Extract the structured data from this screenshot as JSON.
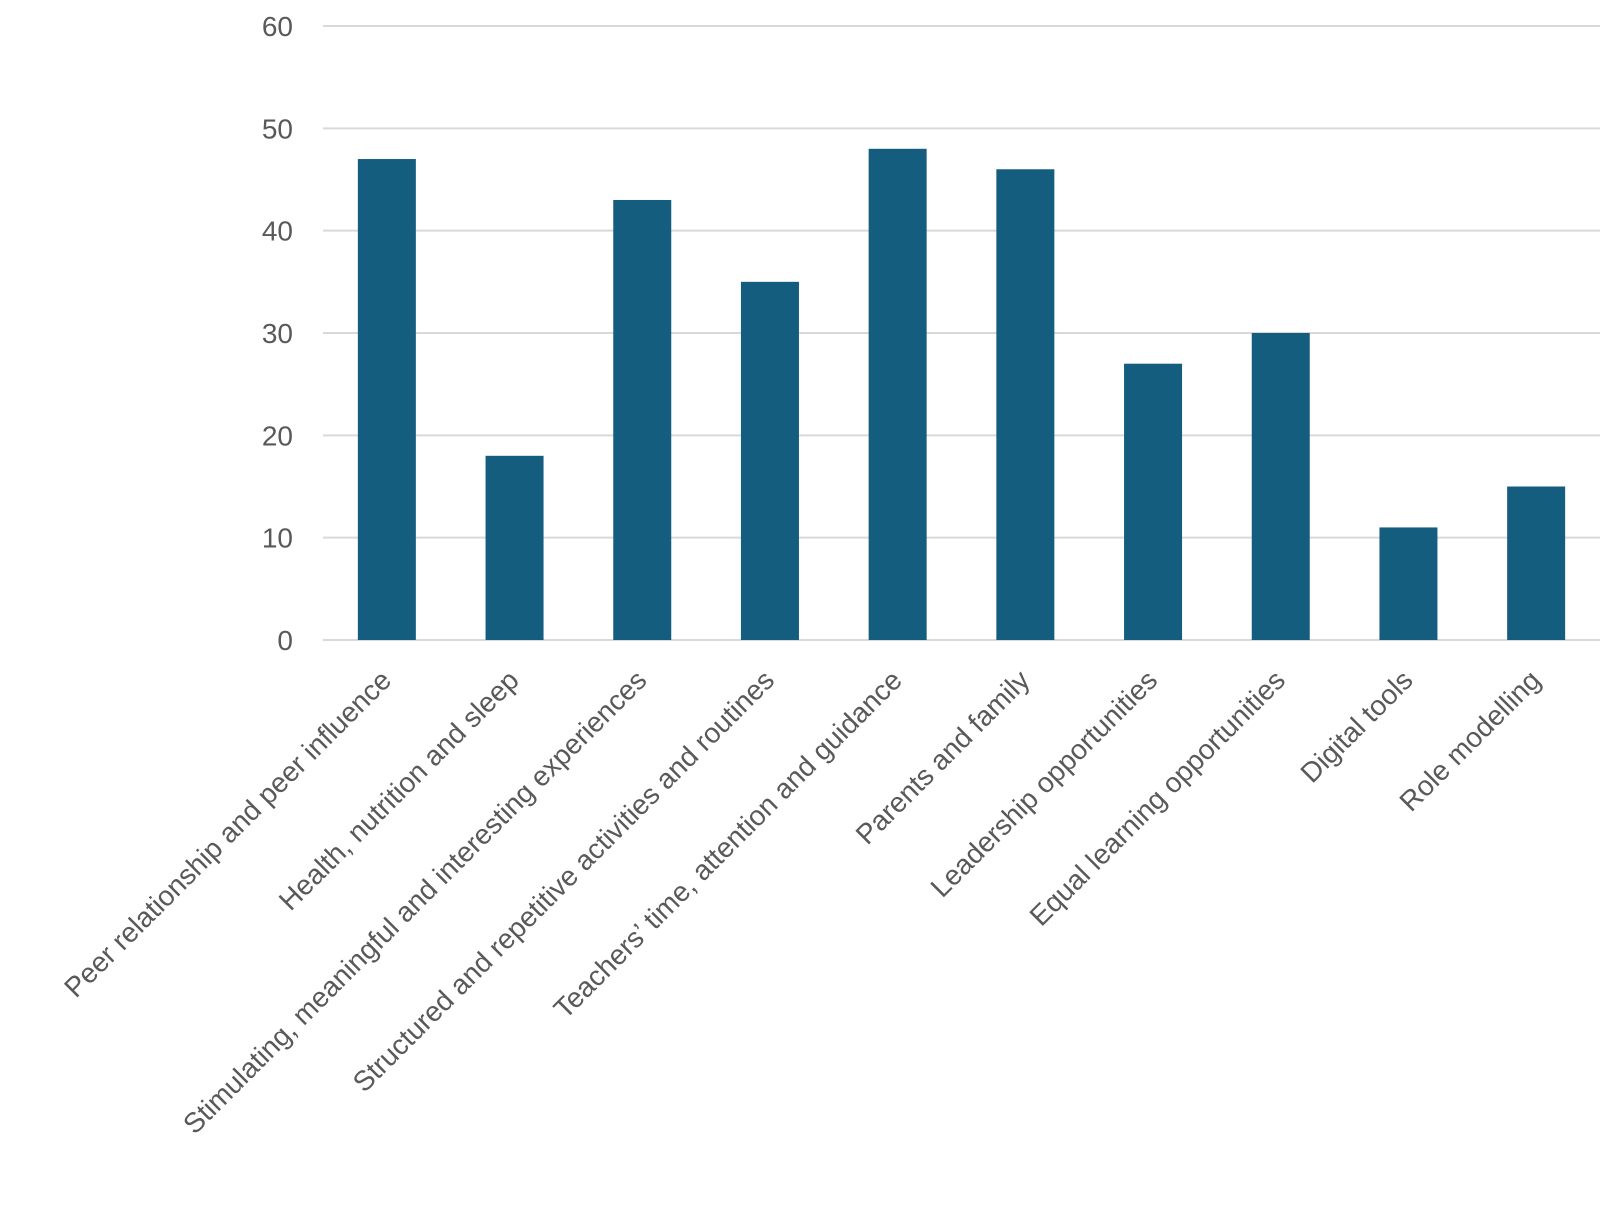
{
  "chart_data": {
    "type": "bar",
    "categories": [
      "Peer relationship and peer influence",
      "Health, nutrition and sleep",
      "Stimulating, meaningful and interesting experiences",
      "Structured and repetitive activities and routines",
      "Teachers’ time, attention and guidance",
      "Parents and family",
      "Leadership opportunities",
      "Equal learning opportunities",
      "Digital tools",
      "Role modelling"
    ],
    "values": [
      47,
      18,
      43,
      35,
      48,
      46,
      27,
      30,
      11,
      15
    ],
    "ylim": [
      0,
      60
    ],
    "yticks": [
      0,
      10,
      20,
      30,
      40,
      50,
      60
    ],
    "grid": true,
    "colors": {
      "bar": "#155d7f",
      "grid": "#d9d9d9",
      "text": "#595959"
    },
    "title": "",
    "xlabel": "",
    "ylabel": ""
  }
}
